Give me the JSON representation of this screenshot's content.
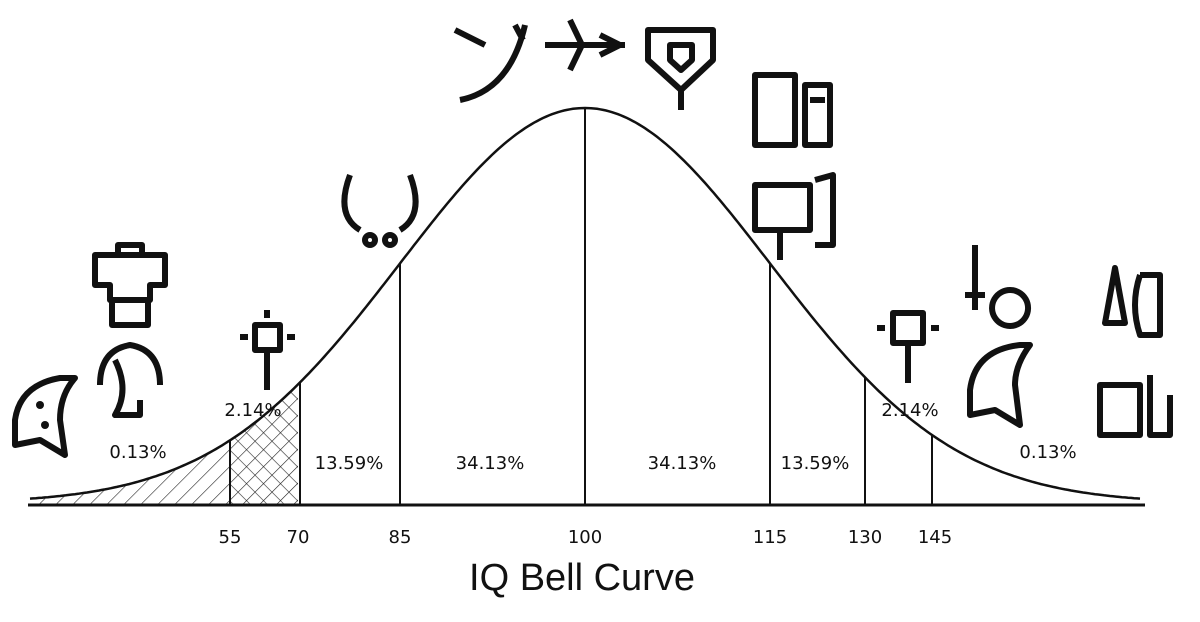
{
  "title": "IQ Bell Curve",
  "axis_labels": [
    "55",
    "70",
    "85",
    "100",
    "115",
    "130",
    "145"
  ],
  "regions": [
    "0.13%",
    "2.14%",
    "13.59%",
    "34.13%",
    "34.13%",
    "13.59%",
    "2.14%",
    "0.13%"
  ]
}
